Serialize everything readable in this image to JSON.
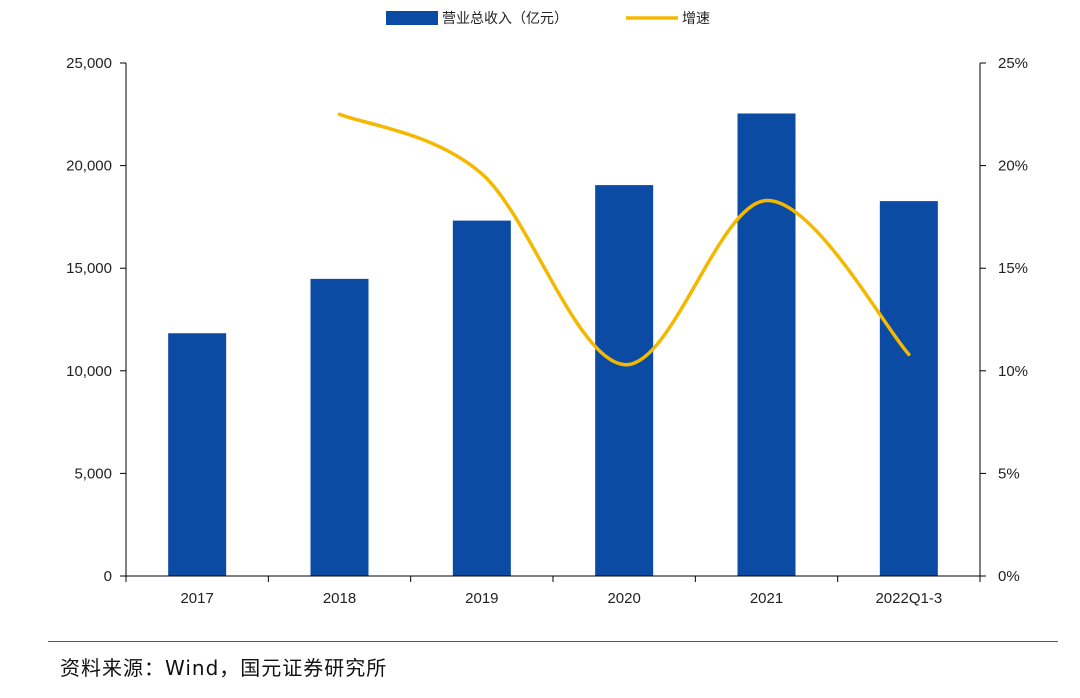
{
  "chart_data": {
    "type": "bar",
    "categories": [
      "2017",
      "2018",
      "2019",
      "2020",
      "2021",
      "2022Q1-3"
    ],
    "series": [
      {
        "name": "营业总收入（亿元）",
        "type": "bar",
        "axis": "left",
        "color": "#0b4ba3",
        "values": [
          11830,
          14480,
          17320,
          19050,
          22540,
          18270
        ]
      },
      {
        "name": "增速",
        "type": "line",
        "axis": "right",
        "color": "#f5b800",
        "smooth": true,
        "values": [
          null,
          22.5,
          19.6,
          10.3,
          18.3,
          10.8
        ]
      }
    ],
    "y_left": {
      "min": 0,
      "max": 25000,
      "ticks": [
        0,
        5000,
        10000,
        15000,
        20000,
        25000
      ],
      "tick_labels": [
        "0",
        "5,000",
        "10,000",
        "15,000",
        "20,000",
        "25,000"
      ]
    },
    "y_right": {
      "min": 0,
      "max": 25,
      "ticks": [
        0,
        5,
        10,
        15,
        20,
        25
      ],
      "tick_labels": [
        "0%",
        "5%",
        "10%",
        "15%",
        "20%",
        "25%"
      ]
    },
    "legend_position": "top-center",
    "grid": false
  },
  "source": {
    "text": "资料来源：Wind，国元证券研究所"
  }
}
